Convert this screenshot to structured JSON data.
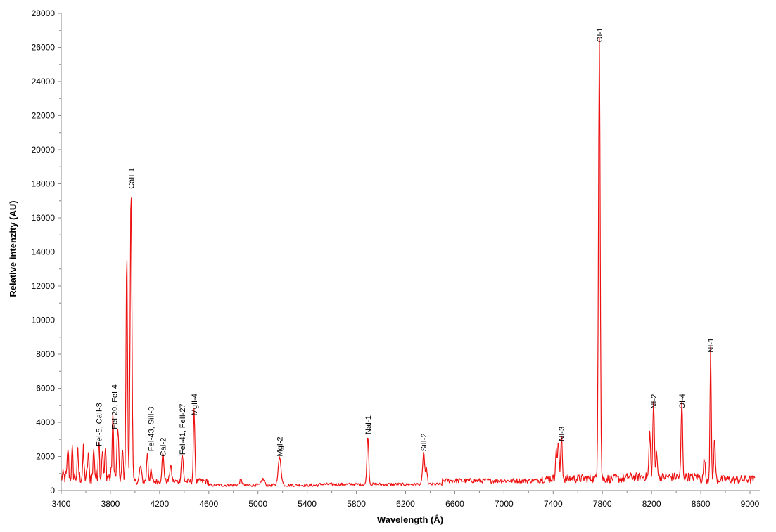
{
  "chart_data": {
    "type": "line",
    "title": "",
    "xlabel": "Wavelength (Å)",
    "ylabel": "Relative intenzity (AU)",
    "xlim": [
      3400,
      9080
    ],
    "ylim": [
      0,
      28000
    ],
    "xticks": [
      3400,
      3800,
      4200,
      4600,
      5000,
      5400,
      5800,
      6200,
      6600,
      7000,
      7400,
      7800,
      8200,
      8600,
      9000
    ],
    "yticks": [
      0,
      2000,
      4000,
      6000,
      8000,
      10000,
      12000,
      14000,
      16000,
      18000,
      20000,
      22000,
      24000,
      26000,
      28000
    ],
    "grid": false,
    "legend": "none",
    "series": [
      {
        "color": "#ee1111",
        "peaks": [
          {
            "x": 3455,
            "y": 1750,
            "w": 5
          },
          {
            "x": 3490,
            "y": 1550,
            "w": 5
          },
          {
            "x": 3535,
            "y": 1400,
            "w": 5
          },
          {
            "x": 3580,
            "y": 1500,
            "w": 5
          },
          {
            "x": 3620,
            "y": 1400,
            "w": 5
          },
          {
            "x": 3665,
            "y": 1850,
            "w": 5
          },
          {
            "x": 3706,
            "y": 2400,
            "w": 5
          },
          {
            "x": 3735,
            "y": 1750,
            "w": 5
          },
          {
            "x": 3760,
            "y": 1600,
            "w": 5
          },
          {
            "x": 3820,
            "y": 3400,
            "w": 6
          },
          {
            "x": 3860,
            "y": 3000,
            "w": 6
          },
          {
            "x": 3900,
            "y": 1800,
            "w": 5
          },
          {
            "x": 3933,
            "y": 13600,
            "w": 6
          },
          {
            "x": 3968,
            "y": 17500,
            "w": 7
          },
          {
            "x": 4045,
            "y": 900,
            "w": 8
          },
          {
            "x": 4101,
            "y": 1700,
            "w": 6
          },
          {
            "x": 4130,
            "y": 600,
            "w": 6
          },
          {
            "x": 4227,
            "y": 1600,
            "w": 8
          },
          {
            "x": 4290,
            "y": 900,
            "w": 8
          },
          {
            "x": 4384,
            "y": 1600,
            "w": 8
          },
          {
            "x": 4481,
            "y": 4150,
            "w": 6
          },
          {
            "x": 4861,
            "y": 300,
            "w": 10
          },
          {
            "x": 5040,
            "y": 350,
            "w": 12
          },
          {
            "x": 5176,
            "y": 1600,
            "w": 12
          },
          {
            "x": 5893,
            "y": 2900,
            "w": 7
          },
          {
            "x": 6347,
            "y": 1900,
            "w": 8
          },
          {
            "x": 6371,
            "y": 900,
            "w": 6
          },
          {
            "x": 7424,
            "y": 1600,
            "w": 6
          },
          {
            "x": 7442,
            "y": 2200,
            "w": 6
          },
          {
            "x": 7468,
            "y": 2600,
            "w": 6
          },
          {
            "x": 7775,
            "y": 26000,
            "w": 7
          },
          {
            "x": 8185,
            "y": 2700,
            "w": 6
          },
          {
            "x": 8216,
            "y": 4500,
            "w": 6
          },
          {
            "x": 8242,
            "y": 1500,
            "w": 6
          },
          {
            "x": 8446,
            "y": 4500,
            "w": 6
          },
          {
            "x": 8629,
            "y": 1300,
            "w": 6
          },
          {
            "x": 8680,
            "y": 7800,
            "w": 5
          },
          {
            "x": 8712,
            "y": 2400,
            "w": 6
          }
        ]
      }
    ],
    "annotations": [
      {
        "text": "FeI-5, CaII-3",
        "x": 3706,
        "y": 2600,
        "rotate": true
      },
      {
        "text": "FeI-20, FeI-4",
        "x": 3832,
        "y": 3600,
        "rotate": true
      },
      {
        "text": "CaII-1",
        "x": 3968,
        "y": 17700,
        "rotate": true
      },
      {
        "text": "FeI-43, SiII-3",
        "x": 4130,
        "y": 2300,
        "rotate": true
      },
      {
        "text": "CaI-2",
        "x": 4227,
        "y": 2000,
        "rotate": true
      },
      {
        "text": "FeI-41, FeII-27",
        "x": 4384,
        "y": 2100,
        "rotate": true
      },
      {
        "text": "MgII-4",
        "x": 4481,
        "y": 4400,
        "rotate": true
      },
      {
        "text": "MgI-2",
        "x": 5176,
        "y": 2000,
        "rotate": true
      },
      {
        "text": "NaI-1",
        "x": 5893,
        "y": 3300,
        "rotate": true
      },
      {
        "text": "SiII-2",
        "x": 6347,
        "y": 2300,
        "rotate": true
      },
      {
        "text": "NI-3",
        "x": 7468,
        "y": 2900,
        "rotate": true
      },
      {
        "text": "OI-1",
        "x": 7775,
        "y": 26300,
        "rotate": true
      },
      {
        "text": "NI-2",
        "x": 8216,
        "y": 4800,
        "rotate": true
      },
      {
        "text": "OI-4",
        "x": 8446,
        "y": 4800,
        "rotate": true
      },
      {
        "text": "NI-1",
        "x": 8680,
        "y": 8100,
        "rotate": true
      }
    ]
  }
}
